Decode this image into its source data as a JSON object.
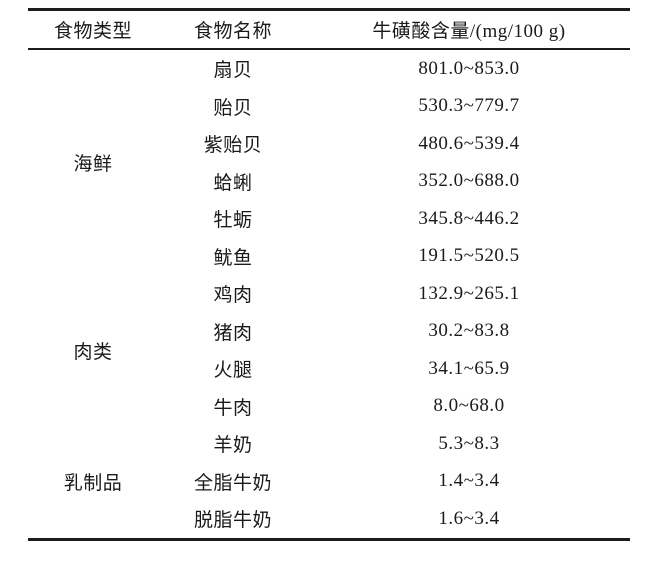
{
  "table": {
    "headers": [
      "食物类型",
      "食物名称",
      "牛磺酸含量/(mg/100 g)"
    ],
    "groups": [
      {
        "type": "海鲜",
        "rows": [
          {
            "name": "扇贝",
            "value": "801.0~853.0"
          },
          {
            "name": "贻贝",
            "value": "530.3~779.7"
          },
          {
            "name": "紫贻贝",
            "value": "480.6~539.4"
          },
          {
            "name": "蛤蜊",
            "value": "352.0~688.0"
          },
          {
            "name": "牡蛎",
            "value": "345.8~446.2"
          },
          {
            "name": "鱿鱼",
            "value": "191.5~520.5"
          }
        ]
      },
      {
        "type": "肉类",
        "rows": [
          {
            "name": "鸡肉",
            "value": "132.9~265.1"
          },
          {
            "name": "猪肉",
            "value": "30.2~83.8"
          },
          {
            "name": "火腿",
            "value": "34.1~65.9"
          },
          {
            "name": "牛肉",
            "value": "8.0~68.0"
          }
        ]
      },
      {
        "type": "乳制品",
        "rows": [
          {
            "name": "羊奶",
            "value": "5.3~8.3"
          },
          {
            "name": "全脂牛奶",
            "value": "1.4~3.4"
          },
          {
            "name": "脱脂牛奶",
            "value": "1.6~3.4"
          }
        ]
      }
    ],
    "text_color": "#1a1a1a",
    "rule_color": "#1c1c1c",
    "background_color": "#ffffff"
  }
}
